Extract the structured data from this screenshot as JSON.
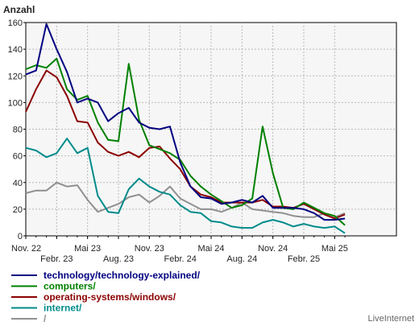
{
  "chart_data": {
    "type": "line",
    "ylabel": "Anzahl",
    "ylim": [
      0,
      160
    ],
    "yticks": [
      0,
      20,
      40,
      60,
      80,
      100,
      120,
      140,
      160
    ],
    "xlim": [
      0,
      36
    ],
    "xticks_top": [
      {
        "x": 0,
        "label": "Nov. 22"
      },
      {
        "x": 6,
        "label": "Mai 23"
      },
      {
        "x": 12,
        "label": "Nov. 23"
      },
      {
        "x": 18,
        "label": "Mai 24"
      },
      {
        "x": 24,
        "label": "Nov. 24"
      },
      {
        "x": 30,
        "label": "Mai 25"
      }
    ],
    "xticks_bottom": [
      {
        "x": 3,
        "label": "Febr. 23"
      },
      {
        "x": 9,
        "label": "Aug. 23"
      },
      {
        "x": 15,
        "label": "Febr. 24"
      },
      {
        "x": 21,
        "label": "Aug. 24"
      },
      {
        "x": 27,
        "label": "Febr. 25"
      }
    ],
    "grid": true,
    "legend_position": "bottom-left",
    "series": [
      {
        "name": "technology/technology-explained/",
        "color": "#000080",
        "x": [
          0,
          1,
          2,
          3,
          4,
          5,
          6,
          7,
          8,
          9,
          10,
          11,
          12,
          13,
          14,
          15,
          16,
          17,
          18,
          19,
          20,
          21,
          22,
          23,
          24,
          25,
          26,
          27,
          28,
          29,
          30,
          31
        ],
        "values": [
          121,
          124,
          159,
          140,
          123,
          100,
          103,
          100,
          86,
          92,
          96,
          85,
          81,
          80,
          82,
          55,
          37,
          29,
          28,
          24,
          25,
          27,
          25,
          30,
          21,
          21,
          21,
          20,
          17,
          12,
          12,
          13
        ]
      },
      {
        "name": "computers/",
        "color": "#008000",
        "x": [
          0,
          1,
          2,
          3,
          4,
          5,
          6,
          7,
          8,
          9,
          10,
          11,
          12,
          13,
          14,
          15,
          16,
          17,
          18,
          19,
          20,
          21,
          22,
          23,
          24,
          25,
          26,
          27,
          28,
          29,
          30,
          31
        ],
        "values": [
          125,
          128,
          126,
          133,
          110,
          102,
          105,
          85,
          72,
          71,
          129,
          87,
          68,
          65,
          62,
          57,
          45,
          37,
          31,
          26,
          21,
          23,
          28,
          82,
          47,
          21,
          20,
          25,
          21,
          17,
          15,
          8
        ]
      },
      {
        "name": "operating-systems/windows/",
        "color": "#8b0000",
        "x": [
          0,
          1,
          2,
          3,
          4,
          5,
          6,
          7,
          8,
          9,
          10,
          11,
          12,
          13,
          14,
          15,
          16,
          17,
          18,
          19,
          20,
          21,
          22,
          23,
          24,
          25,
          26,
          27,
          28,
          29,
          30,
          31
        ],
        "values": [
          93,
          110,
          124,
          119,
          105,
          86,
          85,
          70,
          63,
          60,
          63,
          59,
          66,
          67,
          58,
          50,
          37,
          31,
          29,
          25,
          25,
          25,
          25,
          27,
          22,
          22,
          21,
          24,
          20,
          16,
          13,
          16
        ]
      },
      {
        "name": "internet/",
        "color": "#008b8b",
        "x": [
          0,
          1,
          2,
          3,
          4,
          5,
          6,
          7,
          8,
          9,
          10,
          11,
          12,
          13,
          14,
          15,
          16,
          17,
          18,
          19,
          20,
          21,
          22,
          23,
          24,
          25,
          26,
          27,
          28,
          29,
          30,
          31
        ],
        "values": [
          66,
          64,
          59,
          62,
          73,
          62,
          66,
          30,
          18,
          17,
          35,
          43,
          37,
          33,
          31,
          23,
          18,
          17,
          11,
          10,
          7,
          6,
          6,
          10,
          12,
          10,
          7,
          9,
          7,
          6,
          7,
          2
        ]
      },
      {
        "name": "/",
        "color": "#909090",
        "x": [
          0,
          1,
          2,
          3,
          4,
          5,
          6,
          7,
          8,
          9,
          10,
          11,
          12,
          13,
          14,
          15,
          16,
          17,
          18,
          19,
          20,
          21,
          22,
          23,
          24,
          25,
          26,
          27,
          28,
          29,
          30,
          31
        ],
        "values": [
          32,
          34,
          34,
          40,
          37,
          38,
          27,
          18,
          21,
          24,
          29,
          31,
          25,
          30,
          37,
          28,
          24,
          20,
          20,
          18,
          21,
          25,
          20,
          19,
          18,
          17,
          15,
          14,
          14,
          17,
          14,
          17
        ]
      }
    ]
  },
  "footer": {
    "brand": "LiveInternet"
  }
}
